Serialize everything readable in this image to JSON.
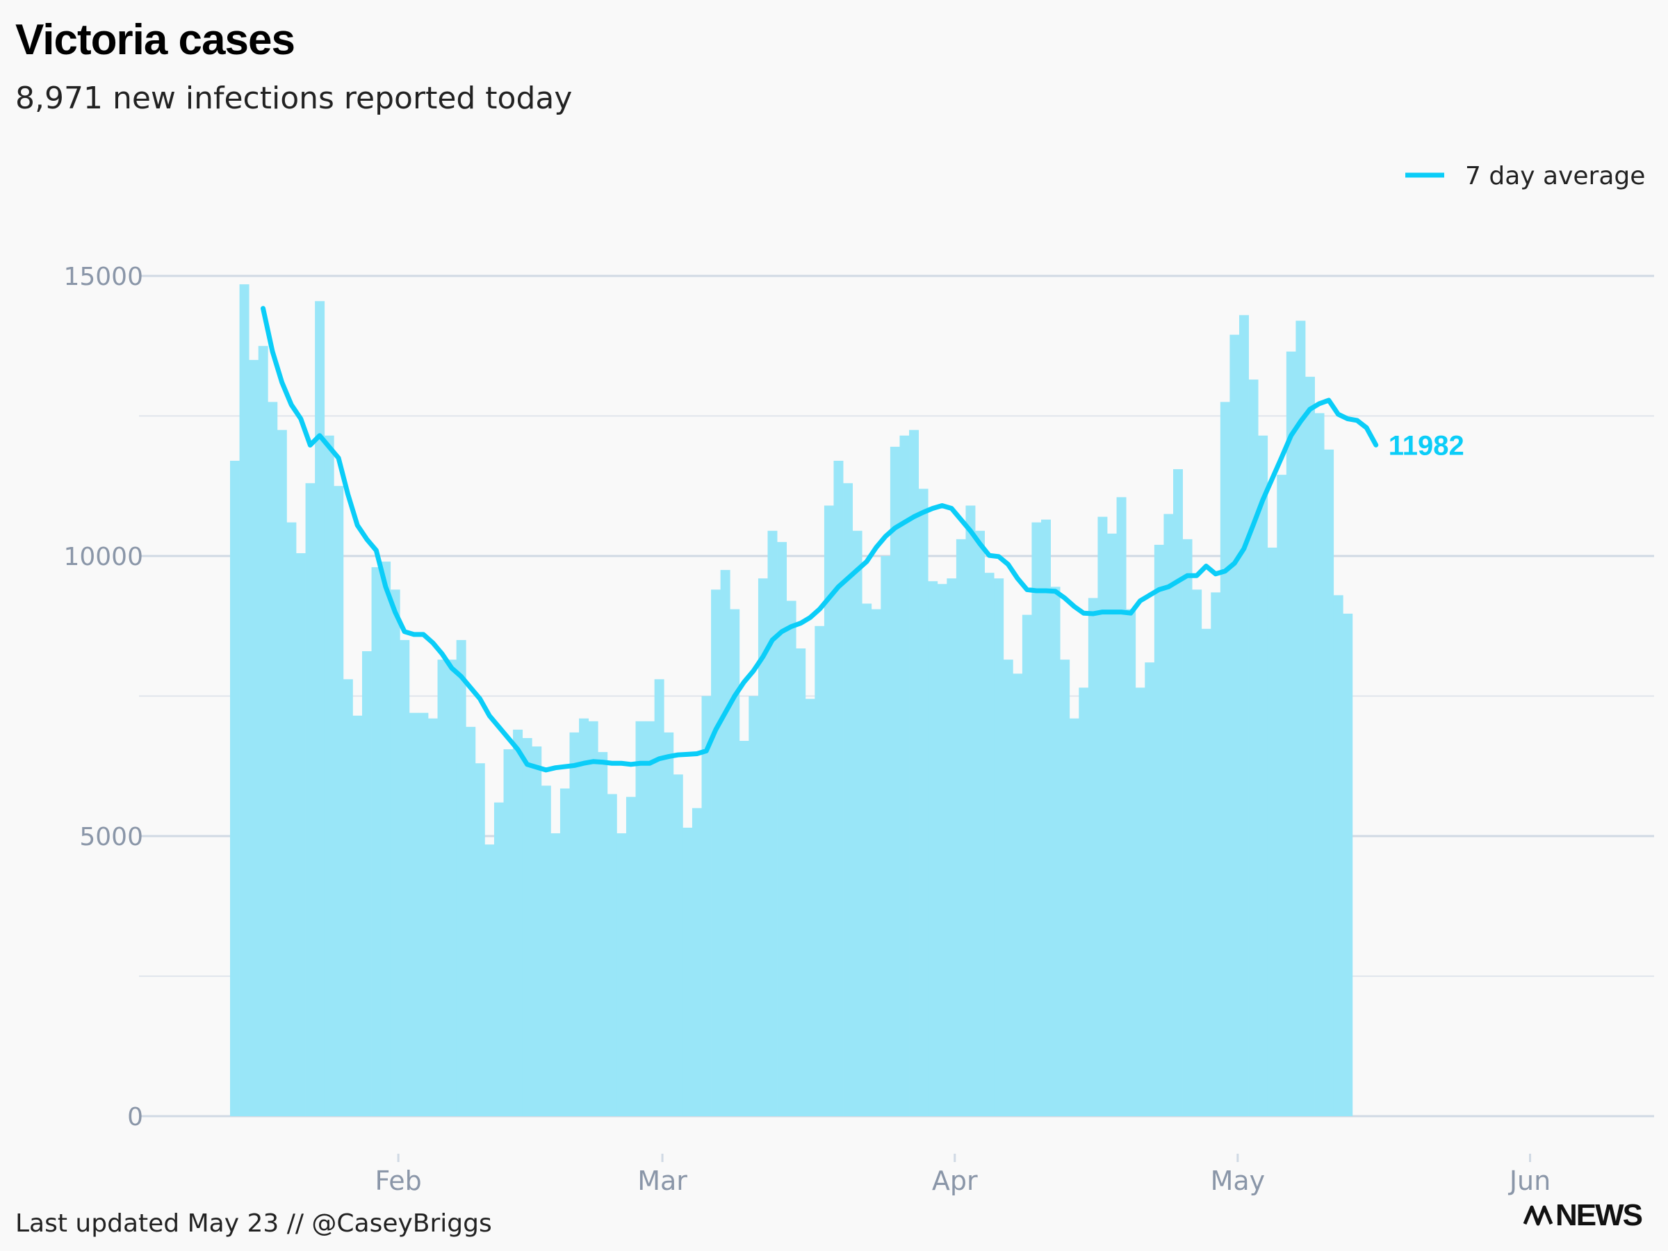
{
  "header": {
    "title": "Victoria cases",
    "subtitle": "8,971 new infections reported today"
  },
  "footer": {
    "note": "Last updated May 23 // @CaseyBriggs",
    "brand": "NEWS"
  },
  "colors": {
    "bar": "#99e6f8",
    "line": "#0bcdf8",
    "grid": "#d0d9e4",
    "tick": "#8a96a8"
  },
  "chart_data": {
    "type": "bar",
    "title": "Victoria cases",
    "subtitle": "8,971 new infections reported today",
    "x_start": "2022-01-23",
    "x_end": "2022-06-07",
    "ylim": [
      0,
      15500
    ],
    "y_ticks": [
      0,
      5000,
      10000,
      15000
    ],
    "x_tick_labels": [
      {
        "label": "Feb",
        "date": "2022-02-01"
      },
      {
        "label": "Mar",
        "date": "2022-03-01"
      },
      {
        "label": "Apr",
        "date": "2022-04-01"
      },
      {
        "label": "May",
        "date": "2022-05-01"
      },
      {
        "label": "Jun",
        "date": "2022-06-01"
      }
    ],
    "grid": true,
    "legend": {
      "position": "top-right",
      "entries": [
        "7 day average"
      ]
    },
    "series": [
      {
        "type": "bar",
        "start_date": "2022-01-23",
        "values": [
          11700,
          14850,
          13500,
          13750,
          12750,
          12250,
          10600,
          10050,
          11300,
          14550,
          12150,
          11250,
          7800,
          7150,
          8300,
          9800,
          9900,
          9400,
          8500,
          7200,
          7200,
          7100,
          8150,
          8150,
          8500,
          6950,
          6300,
          4850,
          5600,
          6550,
          6900,
          6750,
          6600,
          5900,
          5050,
          5850,
          6850,
          7100,
          7050,
          6500,
          5750,
          5050,
          5700,
          7050,
          7050,
          7800,
          6850,
          6100,
          5150,
          5500,
          7500,
          9400,
          9750,
          9050,
          6700,
          7500,
          9600,
          10450,
          10250,
          9200,
          8350,
          7450,
          8750,
          10900,
          11700,
          11300,
          10450,
          9150,
          9050,
          10000,
          11950,
          12150,
          12250,
          11200,
          9550,
          9500,
          9600,
          10300,
          10900,
          10450,
          9700,
          9600,
          8150,
          7900,
          8950,
          10600,
          10650,
          9450,
          8150,
          7100,
          7650,
          9250,
          10700,
          10400,
          11050,
          9050,
          7650,
          8100,
          10200,
          10750,
          11550,
          10300,
          9400,
          8700,
          9350,
          12750,
          13950,
          14300,
          13150,
          12150,
          10150,
          11450,
          13650,
          14200,
          13200,
          12550,
          11900,
          9300,
          8971
        ]
      },
      {
        "name": "7 day average",
        "type": "line",
        "start_date": "2022-01-26",
        "end_label": "11982",
        "values": [
          14420,
          13650,
          13100,
          12700,
          12450,
          11980,
          12150,
          11950,
          11750,
          11100,
          10550,
          10300,
          10100,
          9450,
          9000,
          8650,
          8600,
          8600,
          8450,
          8250,
          8000,
          7850,
          7650,
          7450,
          7150,
          6950,
          6750,
          6550,
          6280,
          6230,
          6180,
          6220,
          6240,
          6260,
          6300,
          6330,
          6320,
          6300,
          6300,
          6280,
          6300,
          6300,
          6380,
          6420,
          6450,
          6460,
          6470,
          6520,
          6900,
          7200,
          7500,
          7750,
          7950,
          8200,
          8500,
          8650,
          8740,
          8800,
          8900,
          9050,
          9250,
          9450,
          9600,
          9750,
          9900,
          10150,
          10350,
          10500,
          10600,
          10700,
          10780,
          10850,
          10900,
          10850,
          10650,
          10450,
          10220,
          10010,
          9990,
          9850,
          9600,
          9400,
          9380,
          9380,
          9370,
          9250,
          9100,
          8980,
          8970,
          9000,
          9000,
          9000,
          8980,
          9200,
          9300,
          9400,
          9450,
          9550,
          9650,
          9650,
          9820,
          9680,
          9730,
          9870,
          10130,
          10560,
          11000,
          11380,
          11760,
          12150,
          12400,
          12620,
          12720,
          12780,
          12530,
          12450,
          12420,
          12290,
          11982
        ]
      }
    ]
  }
}
